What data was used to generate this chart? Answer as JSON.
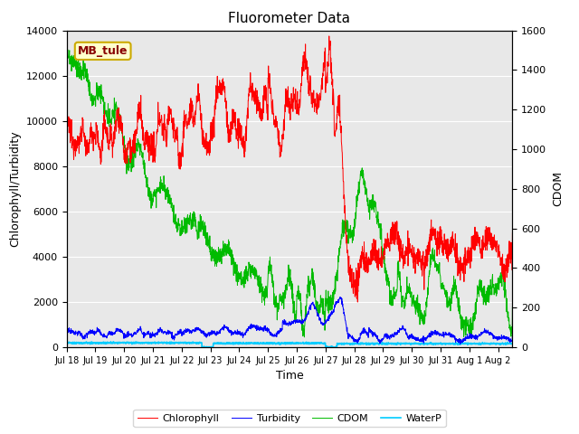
{
  "title": "Fluorometer Data",
  "xlabel": "Time",
  "ylabel_left": "Chlorophyll/Turbidity",
  "ylabel_right": "CDOM",
  "annotation": "MB_tule",
  "ylim_left": [
    0,
    14000
  ],
  "ylim_right": [
    0,
    1600
  ],
  "xlim_days": [
    0,
    15.5
  ],
  "x_tick_labels": [
    "Jul 18",
    "Jul 19",
    "Jul 20",
    "Jul 21",
    "Jul 22",
    "Jul 23",
    "Jul 24",
    "Jul 25",
    "Jul 26",
    "Jul 27",
    "Jul 28",
    "Jul 29",
    "Jul 30",
    "Jul 31",
    "Aug 1",
    "Aug 2"
  ],
  "x_tick_positions": [
    0,
    1,
    2,
    3,
    4,
    5,
    6,
    7,
    8,
    9,
    10,
    11,
    12,
    13,
    14,
    15
  ],
  "colors": {
    "chlorophyll": "#ff0000",
    "turbidity": "#0000ff",
    "cdom": "#00bb00",
    "waterp": "#00ccff",
    "fig_bg": "#ffffff",
    "plot_bg": "#e8e8e8",
    "annotation_bg": "#ffffcc",
    "annotation_border": "#ccaa00"
  },
  "legend_labels": [
    "Chlorophyll",
    "Turbidity",
    "CDOM",
    "WaterP"
  ],
  "grid_color": "#ffffff",
  "yticks_left": [
    0,
    2000,
    4000,
    6000,
    8000,
    10000,
    12000,
    14000
  ],
  "yticks_right": [
    0,
    200,
    400,
    600,
    800,
    1000,
    1200,
    1400,
    1600
  ],
  "n_points": 2000,
  "x_end": 15.5
}
